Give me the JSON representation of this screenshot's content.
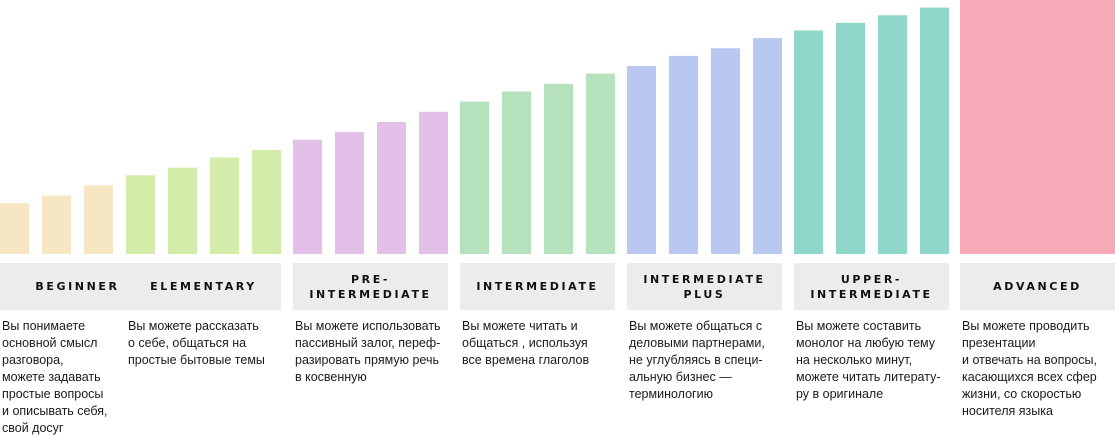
{
  "chart_data": {
    "type": "bar",
    "xlabel": "",
    "ylabel": "",
    "ylim": [
      0,
      100
    ],
    "grid": false,
    "legend": "none",
    "groups": [
      {
        "label": "BEGINNER",
        "color": "#f7e6c2",
        "values": [
          20,
          23,
          27
        ],
        "description": "Вы понимаете\nосновной смысл\nразговора,\nможете задавать\nпростые вопросы\nи описывать себя,\nсвой досуг"
      },
      {
        "label": "ELEMENTARY",
        "color": "#d3ecaa",
        "values": [
          31,
          34,
          38,
          41
        ],
        "description": "Вы можете рассказать\nо себе, общаться на\nпростые бытовые темы"
      },
      {
        "label": "PRE-\nINTERMEDIATE",
        "color": "#e2c0e8",
        "values": [
          45,
          48,
          52,
          56
        ],
        "description": "Вы можете использовать\nпассивный залог, переф-\nразировать прямую речь\nв косвенную"
      },
      {
        "label": "INTERMEDIATE",
        "color": "#b5e1bc",
        "values": [
          60,
          64,
          67,
          71
        ],
        "description": "Вы можете читать и\nобщаться , используя\nвсе времена глаголов"
      },
      {
        "label": "INTERMEDIATE\nPLUS",
        "color": "#b8c8f0",
        "values": [
          74,
          78,
          81,
          85
        ],
        "description": "Вы можете общаться с\nделовыми партнерами,\nне углубляясь в специ-\nальную бизнес —\nтерминологию"
      },
      {
        "label": "UPPER-\nINTERMEDIATE",
        "color": "#8fd6ca",
        "values": [
          88,
          91,
          94,
          97
        ],
        "description": "Вы можете составить\nмонолог на любую тему\nна несколько минут,\nможете читать литерату-\nру в оригинале"
      },
      {
        "label": "ADVANCED",
        "color": "#f7a9b8",
        "values": [
          100
        ],
        "description": "Вы можете проводить\nпрезентации\nи отвечать на вопросы,\nкасающихся всех сфер\nжизни, со скоростью\nносителя языка"
      }
    ]
  }
}
